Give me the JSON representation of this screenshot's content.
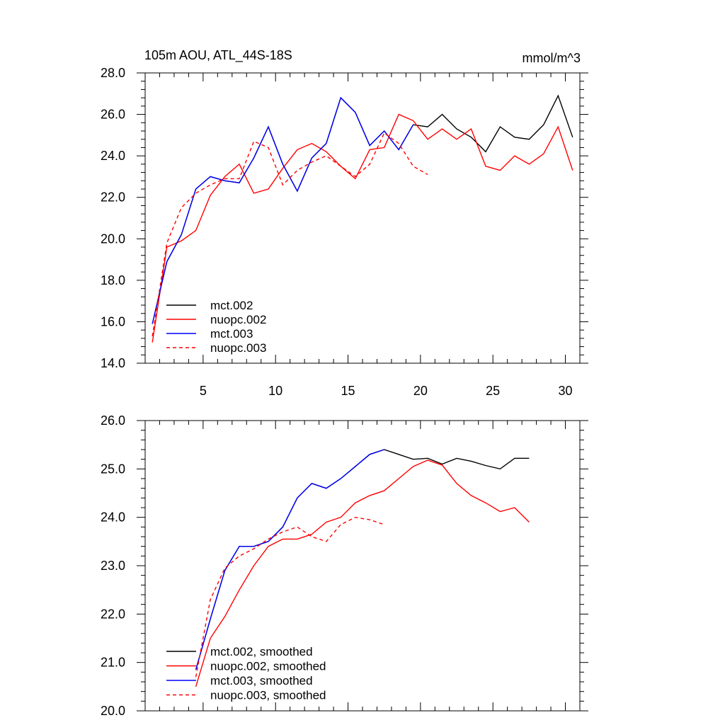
{
  "figure": {
    "title_left": "105m AOU, ATL_44S-18S",
    "title_right": "mmol/m^3"
  },
  "chart_data": [
    {
      "type": "line",
      "title": "105m AOU, ATL_44S-18S",
      "units": "mmol/m^3",
      "xlim": [
        1,
        31
      ],
      "ylim": [
        14.0,
        28.0
      ],
      "x_ticks": [
        5,
        10,
        15,
        20,
        25,
        30
      ],
      "x_tick_labels": [
        "5",
        "10",
        "15",
        "20",
        "25",
        "30"
      ],
      "y_ticks": [
        14.0,
        16.0,
        18.0,
        20.0,
        22.0,
        24.0,
        26.0,
        28.0
      ],
      "y_tick_labels": [
        "14.0",
        "16.0",
        "18.0",
        "20.0",
        "22.0",
        "24.0",
        "26.0",
        "28.0"
      ],
      "legend_position": "lower-left",
      "grid": false,
      "series": [
        {
          "name": "mct.002",
          "color": "#000000",
          "dash": "solid",
          "x": [
            1.5,
            2.5,
            3.5,
            4.5,
            5.5,
            6.5,
            7.5,
            8.5,
            9.5,
            10.5,
            11.5,
            12.5,
            13.5,
            14.5,
            15.5,
            16.5,
            17.5,
            18.5,
            19.5,
            20.5,
            21.5,
            22.5,
            23.5,
            24.5,
            25.5,
            26.5,
            27.5,
            28.5,
            29.5,
            30.5
          ],
          "y": [
            15.9,
            18.9,
            20.2,
            22.4,
            23.0,
            22.8,
            22.7,
            23.9,
            25.4,
            23.6,
            22.3,
            23.9,
            24.6,
            26.8,
            26.1,
            24.5,
            25.2,
            24.3,
            25.5,
            25.4,
            26.0,
            25.3,
            24.9,
            24.2,
            25.4,
            24.9,
            24.8,
            25.5,
            26.9,
            24.9
          ]
        },
        {
          "name": "nuopc.002",
          "color": "#ff0000",
          "dash": "solid",
          "x": [
            1.5,
            2.5,
            3.5,
            4.5,
            5.5,
            6.5,
            7.5,
            8.5,
            9.5,
            10.5,
            11.5,
            12.5,
            13.5,
            14.5,
            15.5,
            16.5,
            17.5,
            18.5,
            19.5,
            20.5,
            21.5,
            22.5,
            23.5,
            24.5,
            25.5,
            26.5,
            27.5,
            28.5,
            29.5,
            30.5
          ],
          "y": [
            15.0,
            19.6,
            19.9,
            20.4,
            22.1,
            23.0,
            23.6,
            22.2,
            22.4,
            23.4,
            24.3,
            24.6,
            24.2,
            23.5,
            22.9,
            24.3,
            24.4,
            26.0,
            25.7,
            24.8,
            25.3,
            24.8,
            25.3,
            23.5,
            23.3,
            24.0,
            23.6,
            24.1,
            25.4,
            23.3
          ]
        },
        {
          "name": "mct.003",
          "color": "#0000ff",
          "dash": "solid",
          "x": [
            1.5,
            2.5,
            3.5,
            4.5,
            5.5,
            6.5,
            7.5,
            8.5,
            9.5,
            10.5,
            11.5,
            12.5,
            13.5,
            14.5,
            15.5,
            16.5,
            17.5,
            18.5,
            19.5
          ],
          "y": [
            15.9,
            18.9,
            20.2,
            22.4,
            23.0,
            22.8,
            22.7,
            23.9,
            25.4,
            23.6,
            22.3,
            23.9,
            24.6,
            26.8,
            26.1,
            24.5,
            25.2,
            24.3,
            25.5
          ]
        },
        {
          "name": "nuopc.003",
          "color": "#ff0000",
          "dash": "dashed",
          "x": [
            1.5,
            2.5,
            3.5,
            4.5,
            5.5,
            6.5,
            7.5,
            8.5,
            9.5,
            10.5,
            11.5,
            12.5,
            13.5,
            14.5,
            15.5,
            16.5,
            17.5,
            18.5,
            19.5,
            20.5
          ],
          "y": [
            15.3,
            19.8,
            21.5,
            22.2,
            22.6,
            22.9,
            22.9,
            24.7,
            24.4,
            22.6,
            23.3,
            23.7,
            24.0,
            23.5,
            23.0,
            23.6,
            25.1,
            24.6,
            23.5,
            23.1
          ]
        }
      ]
    },
    {
      "type": "line",
      "xlim": [
        1,
        31
      ],
      "ylim": [
        20.0,
        26.0
      ],
      "x_ticks": [
        5,
        10,
        15,
        20,
        25,
        30
      ],
      "y_ticks": [
        20.0,
        21.0,
        22.0,
        23.0,
        24.0,
        25.0,
        26.0
      ],
      "y_tick_labels": [
        "20.0",
        "21.0",
        "22.0",
        "23.0",
        "24.0",
        "25.0",
        "26.0"
      ],
      "legend_position": "lower-left",
      "grid": false,
      "series": [
        {
          "name": "mct.002, smoothed",
          "color": "#000000",
          "dash": "solid",
          "x": [
            4.5,
            5.5,
            6.5,
            7.5,
            8.5,
            9.5,
            10.5,
            11.5,
            12.5,
            13.5,
            14.5,
            15.5,
            16.5,
            17.5,
            18.5,
            19.5,
            20.5,
            21.5,
            22.5,
            23.5,
            24.5,
            25.5,
            26.5,
            27.5
          ],
          "y": [
            20.85,
            21.9,
            22.9,
            23.4,
            23.4,
            23.5,
            23.8,
            24.4,
            24.7,
            24.6,
            24.8,
            25.05,
            25.3,
            25.4,
            25.3,
            25.2,
            25.22,
            25.1,
            25.22,
            25.16,
            25.07,
            25.0,
            25.22,
            25.22
          ]
        },
        {
          "name": "nuopc.002, smoothed",
          "color": "#ff0000",
          "dash": "solid",
          "x": [
            4.5,
            5.5,
            6.5,
            7.5,
            8.5,
            9.5,
            10.5,
            11.5,
            12.5,
            13.5,
            14.5,
            15.5,
            16.5,
            17.5,
            18.5,
            19.5,
            20.5,
            21.5,
            22.5,
            23.5,
            24.5,
            25.5,
            26.5,
            27.5
          ],
          "y": [
            20.5,
            21.5,
            21.95,
            22.5,
            23.0,
            23.4,
            23.55,
            23.55,
            23.65,
            23.9,
            24.0,
            24.3,
            24.45,
            24.55,
            24.8,
            25.05,
            25.18,
            25.08,
            24.7,
            24.45,
            24.3,
            24.12,
            24.2,
            23.9
          ]
        },
        {
          "name": "mct.003, smoothed",
          "color": "#0000ff",
          "dash": "solid",
          "x": [
            4.5,
            5.5,
            6.5,
            7.5,
            8.5,
            9.5,
            10.5,
            11.5,
            12.5,
            13.5,
            14.5,
            15.5,
            16.5,
            17.5
          ],
          "y": [
            20.85,
            21.9,
            22.9,
            23.4,
            23.4,
            23.5,
            23.8,
            24.4,
            24.7,
            24.6,
            24.8,
            25.05,
            25.3,
            25.4
          ]
        },
        {
          "name": "nuopc.003, smoothed",
          "color": "#ff0000",
          "dash": "dashed",
          "x": [
            4.5,
            5.5,
            6.5,
            7.5,
            8.5,
            9.5,
            10.5,
            11.5,
            12.5,
            13.5,
            14.5,
            15.5,
            16.5,
            17.5
          ],
          "y": [
            20.7,
            22.3,
            22.95,
            23.2,
            23.35,
            23.55,
            23.7,
            23.8,
            23.6,
            23.5,
            23.85,
            24.0,
            23.95,
            23.85
          ]
        }
      ]
    }
  ]
}
